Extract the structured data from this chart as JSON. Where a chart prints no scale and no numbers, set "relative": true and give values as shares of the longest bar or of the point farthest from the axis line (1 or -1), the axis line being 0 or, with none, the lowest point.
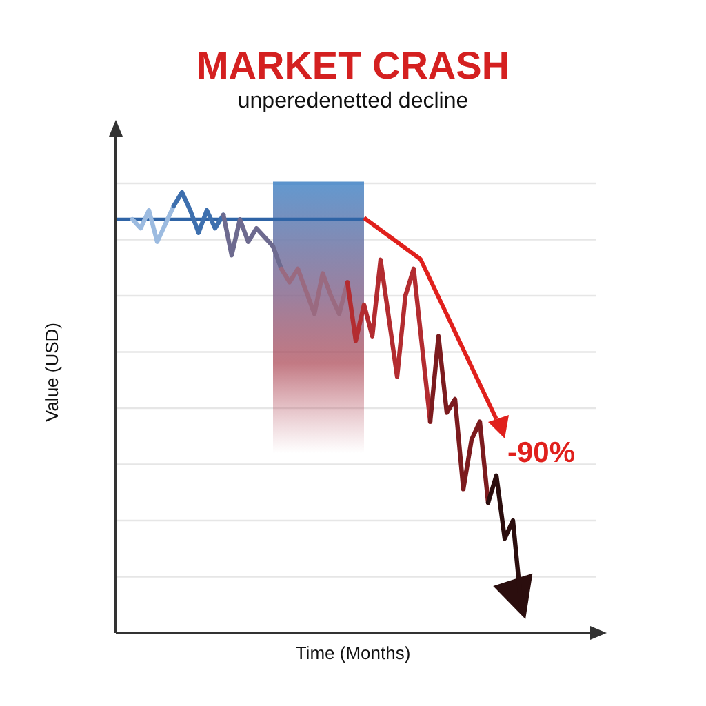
{
  "chart_data": {
    "type": "line",
    "title": "MARKET CRASH",
    "subtitle": "unperedenetted decline",
    "xlabel": "Time (Months)",
    "ylabel": "Value (USD)",
    "relative": true,
    "grid": "y",
    "categories": [
      null,
      null,
      null,
      null,
      null,
      null,
      null,
      null,
      null,
      null,
      null,
      null,
      null,
      null,
      null,
      null,
      null,
      null,
      null,
      null,
      null,
      null,
      null,
      null,
      null,
      null,
      null,
      null,
      null,
      null,
      null,
      null,
      null,
      null,
      null,
      null,
      null,
      null,
      null,
      null,
      null,
      null,
      null,
      null,
      null,
      null,
      null,
      null,
      null,
      null,
      null,
      null,
      null,
      null,
      null,
      null,
      null,
      null,
      null,
      null
    ],
    "series": [
      {
        "type": "area",
        "color": "#5b93cc",
        "values": [
          null,
          null,
          null,
          null,
          null,
          null,
          null,
          null,
          null,
          null,
          null,
          null,
          null,
          null,
          null,
          null,
          null,
          null,
          null,
          1,
          1,
          1,
          1,
          1,
          1,
          1,
          1,
          1,
          1,
          1,
          1,
          null,
          null,
          null,
          null,
          null,
          null,
          null,
          null,
          null,
          null,
          null,
          null,
          null,
          null,
          null,
          null,
          null,
          null,
          null,
          null,
          null,
          null,
          null,
          null,
          null,
          null,
          null,
          null,
          null
        ]
      },
      {
        "color": "#2f64a6",
        "values": [
          0.92,
          0.92,
          0.92,
          0.92,
          0.92,
          0.92,
          0.92,
          0.92,
          0.92,
          0.92,
          0.92,
          0.92,
          0.92,
          0.92,
          0.92,
          0.92,
          0.92,
          0.92,
          0.92,
          0.92,
          0.92,
          0.92,
          0.92,
          0.92,
          0.92,
          0.92,
          0.92,
          0.92,
          0.92,
          0.92,
          0.92,
          null,
          null,
          null,
          null,
          null,
          null,
          null,
          null,
          null,
          null,
          null,
          null,
          null,
          null,
          null,
          null,
          null,
          null,
          null,
          null,
          null,
          null,
          null,
          null,
          null,
          null,
          null,
          null,
          null
        ]
      },
      {
        "color": "#9cbbe0",
        "values": [
          null,
          null,
          0.92,
          0.9,
          0.94,
          0.87,
          0.91,
          0.95,
          null,
          null,
          null,
          null,
          null,
          null,
          null,
          null,
          null,
          null,
          null,
          null,
          null,
          null,
          null,
          null,
          null,
          null,
          null,
          null,
          null,
          null,
          null,
          null,
          null,
          null,
          null,
          null,
          null,
          null,
          null,
          null,
          null,
          null,
          null,
          null,
          null,
          null,
          null,
          null,
          null,
          null,
          null,
          null,
          null,
          null,
          null,
          null,
          null,
          null,
          null,
          null
        ]
      },
      {
        "color": "#3d6fae",
        "values": [
          null,
          null,
          null,
          null,
          null,
          null,
          null,
          0.95,
          0.98,
          0.94,
          0.89,
          0.94,
          0.9,
          0.93,
          null,
          null,
          null,
          null,
          null,
          null,
          null,
          null,
          null,
          null,
          null,
          null,
          null,
          null,
          null,
          null,
          null,
          null,
          null,
          null,
          null,
          null,
          null,
          null,
          null,
          null,
          null,
          null,
          null,
          null,
          null,
          null,
          null,
          null,
          null,
          null,
          null,
          null,
          null,
          null,
          null,
          null,
          null,
          null,
          null,
          null
        ]
      },
      {
        "color": "#6d6a8f",
        "values": [
          null,
          null,
          null,
          null,
          null,
          null,
          null,
          null,
          null,
          null,
          null,
          null,
          null,
          0.93,
          0.84,
          0.92,
          0.87,
          0.9,
          0.88,
          0.86,
          0.81,
          null,
          null,
          null,
          null,
          null,
          null,
          null,
          null,
          null,
          null,
          null,
          null,
          null,
          null,
          null,
          null,
          null,
          null,
          null,
          null,
          null,
          null,
          null,
          null,
          null,
          null,
          null,
          null,
          null,
          null,
          null,
          null,
          null,
          null,
          null,
          null,
          null,
          null,
          null
        ]
      },
      {
        "color": "#9a6a80",
        "values": [
          null,
          null,
          null,
          null,
          null,
          null,
          null,
          null,
          null,
          null,
          null,
          null,
          null,
          null,
          null,
          null,
          null,
          null,
          null,
          null,
          0.81,
          0.78,
          0.81,
          0.76,
          0.71,
          0.8,
          0.75,
          0.71,
          0.78,
          null,
          null,
          null,
          null,
          null,
          null,
          null,
          null,
          null,
          null,
          null,
          null,
          null,
          null,
          null,
          null,
          null,
          null,
          null,
          null,
          null,
          null,
          null,
          null,
          null,
          null,
          null,
          null,
          null,
          null,
          null
        ]
      },
      {
        "color": "#b32c30",
        "values": [
          null,
          null,
          null,
          null,
          null,
          null,
          null,
          null,
          null,
          null,
          null,
          null,
          null,
          null,
          null,
          null,
          null,
          null,
          null,
          null,
          null,
          null,
          null,
          null,
          null,
          null,
          null,
          null,
          0.78,
          0.65,
          0.73,
          0.66,
          0.83,
          0.7,
          0.57,
          0.75,
          0.81,
          0.64,
          0.47,
          null,
          null,
          null,
          null,
          null,
          null,
          null,
          null,
          null,
          null,
          null,
          null,
          null,
          null,
          null,
          null,
          null,
          null,
          null,
          null,
          null
        ]
      },
      {
        "color": "#7c1b1e",
        "values": [
          null,
          null,
          null,
          null,
          null,
          null,
          null,
          null,
          null,
          null,
          null,
          null,
          null,
          null,
          null,
          null,
          null,
          null,
          null,
          null,
          null,
          null,
          null,
          null,
          null,
          null,
          null,
          null,
          null,
          null,
          null,
          null,
          null,
          null,
          null,
          null,
          null,
          null,
          0.47,
          0.66,
          0.49,
          0.52,
          0.32,
          0.43,
          0.47,
          0.29,
          null,
          null,
          null,
          null,
          null,
          null,
          null,
          null,
          null,
          null,
          null,
          null,
          null,
          null
        ]
      },
      {
        "color": "#2b0e0e",
        "values": [
          null,
          null,
          null,
          null,
          null,
          null,
          null,
          null,
          null,
          null,
          null,
          null,
          null,
          null,
          null,
          null,
          null,
          null,
          null,
          null,
          null,
          null,
          null,
          null,
          null,
          null,
          null,
          null,
          null,
          null,
          null,
          null,
          null,
          null,
          null,
          null,
          null,
          null,
          null,
          null,
          null,
          null,
          null,
          null,
          null,
          0.29,
          0.35,
          0.21,
          0.25,
          0.06,
          null,
          null,
          null,
          null,
          null,
          null,
          null,
          null,
          null,
          null
        ]
      }
    ],
    "annotations": [
      "-90%"
    ]
  }
}
